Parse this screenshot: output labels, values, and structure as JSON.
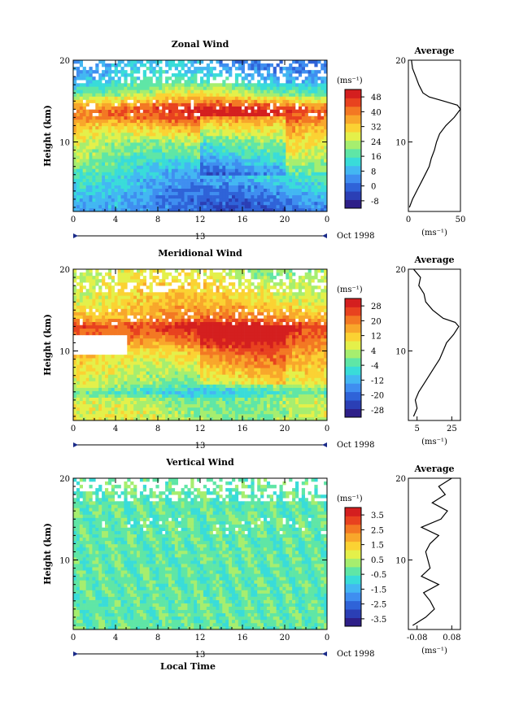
{
  "figure": {
    "date_label": "Oct 1998",
    "day_marker": "13",
    "xlabel": "Local Time",
    "ylabel": "Height (km)",
    "cbar_units": "(ms⁻¹)",
    "avg_title": "Average",
    "avg_units": "(ms⁻¹)"
  },
  "chart_data": [
    {
      "type": "heatmap",
      "title": "Zonal Wind",
      "ylabel": "Height (km)",
      "xticks": [
        "0",
        "4",
        "8",
        "12",
        "16",
        "20",
        "0"
      ],
      "yticks": [
        "10",
        "20"
      ],
      "xlim": [
        0,
        24
      ],
      "ylim": [
        1.5,
        20
      ],
      "colorbar": {
        "units": "(ms⁻¹)",
        "tick_labels": [
          "48",
          "40",
          "32",
          "24",
          "16",
          "8",
          "0",
          "-8"
        ],
        "min": -12,
        "max": 52
      },
      "profile_approx": {
        "height_km": [
          2,
          4,
          6,
          8,
          10,
          12,
          13,
          14,
          15,
          16,
          18,
          20
        ],
        "speed_ms": [
          2,
          6,
          12,
          20,
          26,
          36,
          44,
          46,
          34,
          22,
          10,
          5
        ]
      },
      "average": {
        "title": "Average",
        "xticks": [
          "0",
          "50"
        ],
        "xlim": [
          0,
          50
        ],
        "yticks": [
          "10",
          "20"
        ],
        "height_km": [
          2,
          3,
          4,
          5,
          6,
          7,
          8,
          9,
          10,
          11,
          12,
          13,
          14,
          14.5,
          15,
          15.5,
          16,
          17,
          18,
          19,
          20
        ],
        "values": [
          1,
          4,
          8,
          12,
          16,
          20,
          22,
          25,
          27,
          30,
          36,
          44,
          50,
          47,
          34,
          20,
          14,
          10,
          7,
          4,
          3
        ]
      }
    },
    {
      "type": "heatmap",
      "title": "Meridional Wind",
      "ylabel": "Height (km)",
      "xticks": [
        "0",
        "4",
        "8",
        "12",
        "16",
        "20",
        "0"
      ],
      "yticks": [
        "10",
        "20"
      ],
      "xlim": [
        0,
        24
      ],
      "ylim": [
        1.5,
        20
      ],
      "colorbar": {
        "units": "(ms⁻¹)",
        "tick_labels": [
          "28",
          "20",
          "12",
          "4",
          "-4",
          "-12",
          "-20",
          "-28"
        ],
        "min": -32,
        "max": 32
      },
      "profile_approx": {
        "height_km": [
          2,
          4,
          5,
          6,
          8,
          10,
          11,
          12,
          13,
          14,
          16,
          18,
          20
        ],
        "speed_ms": [
          4,
          2,
          -6,
          3,
          8,
          14,
          20,
          24,
          28,
          18,
          10,
          8,
          4
        ]
      },
      "average": {
        "title": "Average",
        "xticks": [
          "5",
          "25"
        ],
        "xlim": [
          0,
          30
        ],
        "yticks": [
          "10",
          "20"
        ],
        "height_km": [
          2,
          3,
          4,
          5,
          6,
          7,
          8,
          9,
          10,
          11,
          12,
          13,
          13.5,
          14,
          15,
          16,
          17,
          18,
          19,
          20
        ],
        "values": [
          3,
          5,
          4,
          6,
          9,
          12,
          15,
          18,
          20,
          22,
          26,
          29,
          27,
          20,
          14,
          10,
          9,
          6,
          7,
          3
        ]
      }
    },
    {
      "type": "heatmap",
      "title": "Vertical Wind",
      "ylabel": "Height (km)",
      "xlabel": "Local Time",
      "xticks": [
        "0",
        "4",
        "8",
        "12",
        "16",
        "20",
        "0"
      ],
      "yticks": [
        "10",
        "20"
      ],
      "xlim": [
        0,
        24
      ],
      "ylim": [
        1.5,
        20
      ],
      "colorbar": {
        "units": "(ms⁻¹)",
        "tick_labels": [
          "3.5",
          "2.5",
          "1.5",
          "0.5",
          "-0.5",
          "-1.5",
          "-2.5",
          "-3.5"
        ],
        "min": -4,
        "max": 4
      },
      "profile_approx": {
        "height_km": [
          2,
          20
        ],
        "speed_ms": [
          -0.3,
          -0.1
        ]
      },
      "average": {
        "title": "Average",
        "xticks": [
          "-0.08",
          "0.08"
        ],
        "xlim": [
          -0.12,
          0.12
        ],
        "yticks": [
          "10",
          "20"
        ],
        "height_km": [
          2,
          3,
          4,
          5,
          6,
          7,
          8,
          9,
          10,
          11,
          12,
          13,
          14,
          15,
          16,
          17,
          18,
          19,
          20
        ],
        "values": [
          -0.1,
          -0.04,
          0.0,
          -0.02,
          -0.05,
          0.02,
          -0.06,
          -0.02,
          -0.03,
          -0.04,
          -0.02,
          0.02,
          -0.06,
          0.03,
          0.06,
          -0.01,
          0.05,
          0.02,
          0.08
        ]
      }
    }
  ],
  "colors": {
    "palette": [
      "#2e1f88",
      "#2b3fb5",
      "#2f63d8",
      "#3f8ef0",
      "#43b7f2",
      "#39dcd9",
      "#5fe6a6",
      "#a6ee6f",
      "#e4f04a",
      "#fbd233",
      "#f8a72b",
      "#f37823",
      "#e8421f",
      "#d41f1f"
    ]
  }
}
